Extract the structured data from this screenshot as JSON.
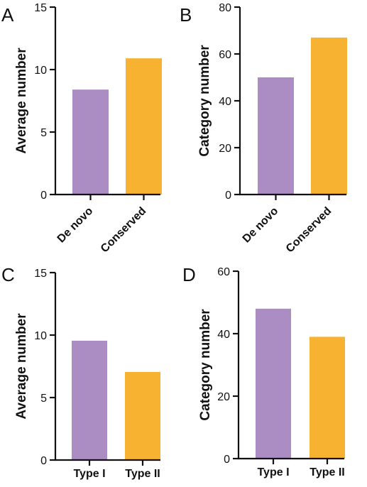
{
  "colors": {
    "purple": "#ab8dc3",
    "orange": "#f8b231",
    "axis": "#111111"
  },
  "chart_data": [
    {
      "panel": "A",
      "type": "bar",
      "ylabel": "Average number",
      "categories": [
        "De novo",
        "Conserved"
      ],
      "values": [
        8.4,
        10.9
      ],
      "bar_colors": [
        "#ab8dc3",
        "#f8b231"
      ],
      "ylim": [
        0,
        15
      ],
      "yticks": [
        0,
        5,
        10,
        15
      ],
      "xtick_rotation": "diagonal",
      "grid": false
    },
    {
      "panel": "B",
      "type": "bar",
      "ylabel": "Category number",
      "categories": [
        "De novo",
        "Conserved"
      ],
      "values": [
        50,
        67
      ],
      "bar_colors": [
        "#ab8dc3",
        "#f8b231"
      ],
      "ylim": [
        0,
        80
      ],
      "yticks": [
        0,
        20,
        40,
        60,
        80
      ],
      "xtick_rotation": "diagonal",
      "grid": false
    },
    {
      "panel": "C",
      "type": "bar",
      "ylabel": "Average number",
      "categories": [
        "Type I",
        "Type II"
      ],
      "values": [
        9.55,
        7.05
      ],
      "bar_colors": [
        "#ab8dc3",
        "#f8b231"
      ],
      "ylim": [
        0,
        15
      ],
      "yticks": [
        0,
        5,
        10,
        15
      ],
      "xtick_rotation": "horizontal",
      "grid": false
    },
    {
      "panel": "D",
      "type": "bar",
      "ylabel": "Category number",
      "categories": [
        "Type I",
        "Type II"
      ],
      "values": [
        48,
        39
      ],
      "bar_colors": [
        "#ab8dc3",
        "#f8b231"
      ],
      "ylim": [
        0,
        60
      ],
      "yticks": [
        0,
        20,
        40,
        60
      ],
      "xtick_rotation": "horizontal",
      "grid": false
    }
  ]
}
